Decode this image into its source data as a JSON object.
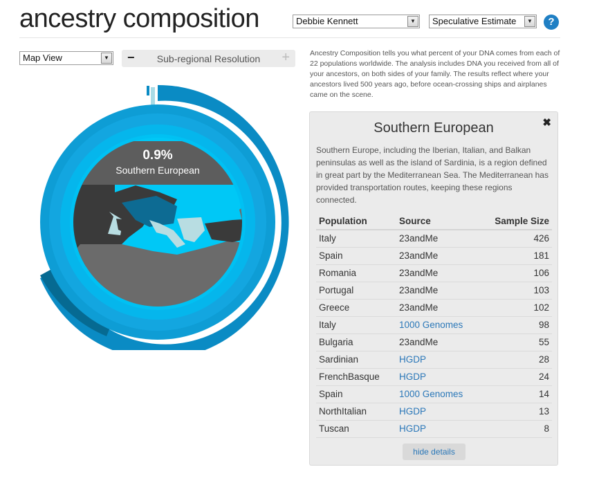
{
  "header": {
    "title": "ancestry composition",
    "profile_select": "Debbie Kennett",
    "estimate_select": "Speculative Estimate",
    "help_label": "?"
  },
  "view": {
    "view_select": "Map View",
    "resolution_label": "Sub-regional Resolution",
    "minus_label": "−",
    "plus_label": "+"
  },
  "intro": "Ancestry Composition tells you what percent of your DNA comes from each of 22 populations worldwide. The analysis includes DNA you received from all of your ancestors, on both sides of your family. The results reflect where your ancestors lived 500 years ago, before ocean-crossing ships and airplanes came on the scene.",
  "chart": {
    "percent": "0.9%",
    "region": "Southern European"
  },
  "detail": {
    "title": "Southern European",
    "close": "✖",
    "description": "Southern Europe, including the Iberian, Italian, and Balkan peninsulas as well as the island of Sardinia, is a region defined in great part by the Mediterranean Sea. The Mediterranean has provided transportation routes, keeping these regions connected.",
    "columns": [
      "Population",
      "Source",
      "Sample Size"
    ],
    "rows": [
      {
        "population": "Italy",
        "source": "23andMe",
        "size": "426",
        "link": false
      },
      {
        "population": "Spain",
        "source": "23andMe",
        "size": "181",
        "link": false
      },
      {
        "population": "Romania",
        "source": "23andMe",
        "size": "106",
        "link": false
      },
      {
        "population": "Portugal",
        "source": "23andMe",
        "size": "103",
        "link": false
      },
      {
        "population": "Greece",
        "source": "23andMe",
        "size": "102",
        "link": false
      },
      {
        "population": "Italy",
        "source": "1000 Genomes",
        "size": "98",
        "link": true
      },
      {
        "population": "Bulgaria",
        "source": "23andMe",
        "size": "55",
        "link": false
      },
      {
        "population": "Sardinian",
        "source": "HGDP",
        "size": "28",
        "link": true
      },
      {
        "population": "FrenchBasque",
        "source": "HGDP",
        "size": "24",
        "link": true
      },
      {
        "population": "Spain",
        "source": "1000 Genomes",
        "size": "14",
        "link": true
      },
      {
        "population": "NorthItalian",
        "source": "HGDP",
        "size": "13",
        "link": true
      },
      {
        "population": "Tuscan",
        "source": "HGDP",
        "size": "8",
        "link": true
      }
    ],
    "hide_label": "hide details"
  },
  "colors": {
    "ring_outer": "#0a8bc4",
    "ring_dark": "#066a92",
    "ring_mid": "#13a6e0",
    "ring_inner": "#00c1f3",
    "selected_sliver": "#a8dbe6",
    "map_land": "#3a3a3a",
    "map_highlight": "#b8dde2",
    "link": "#2a77b8"
  }
}
